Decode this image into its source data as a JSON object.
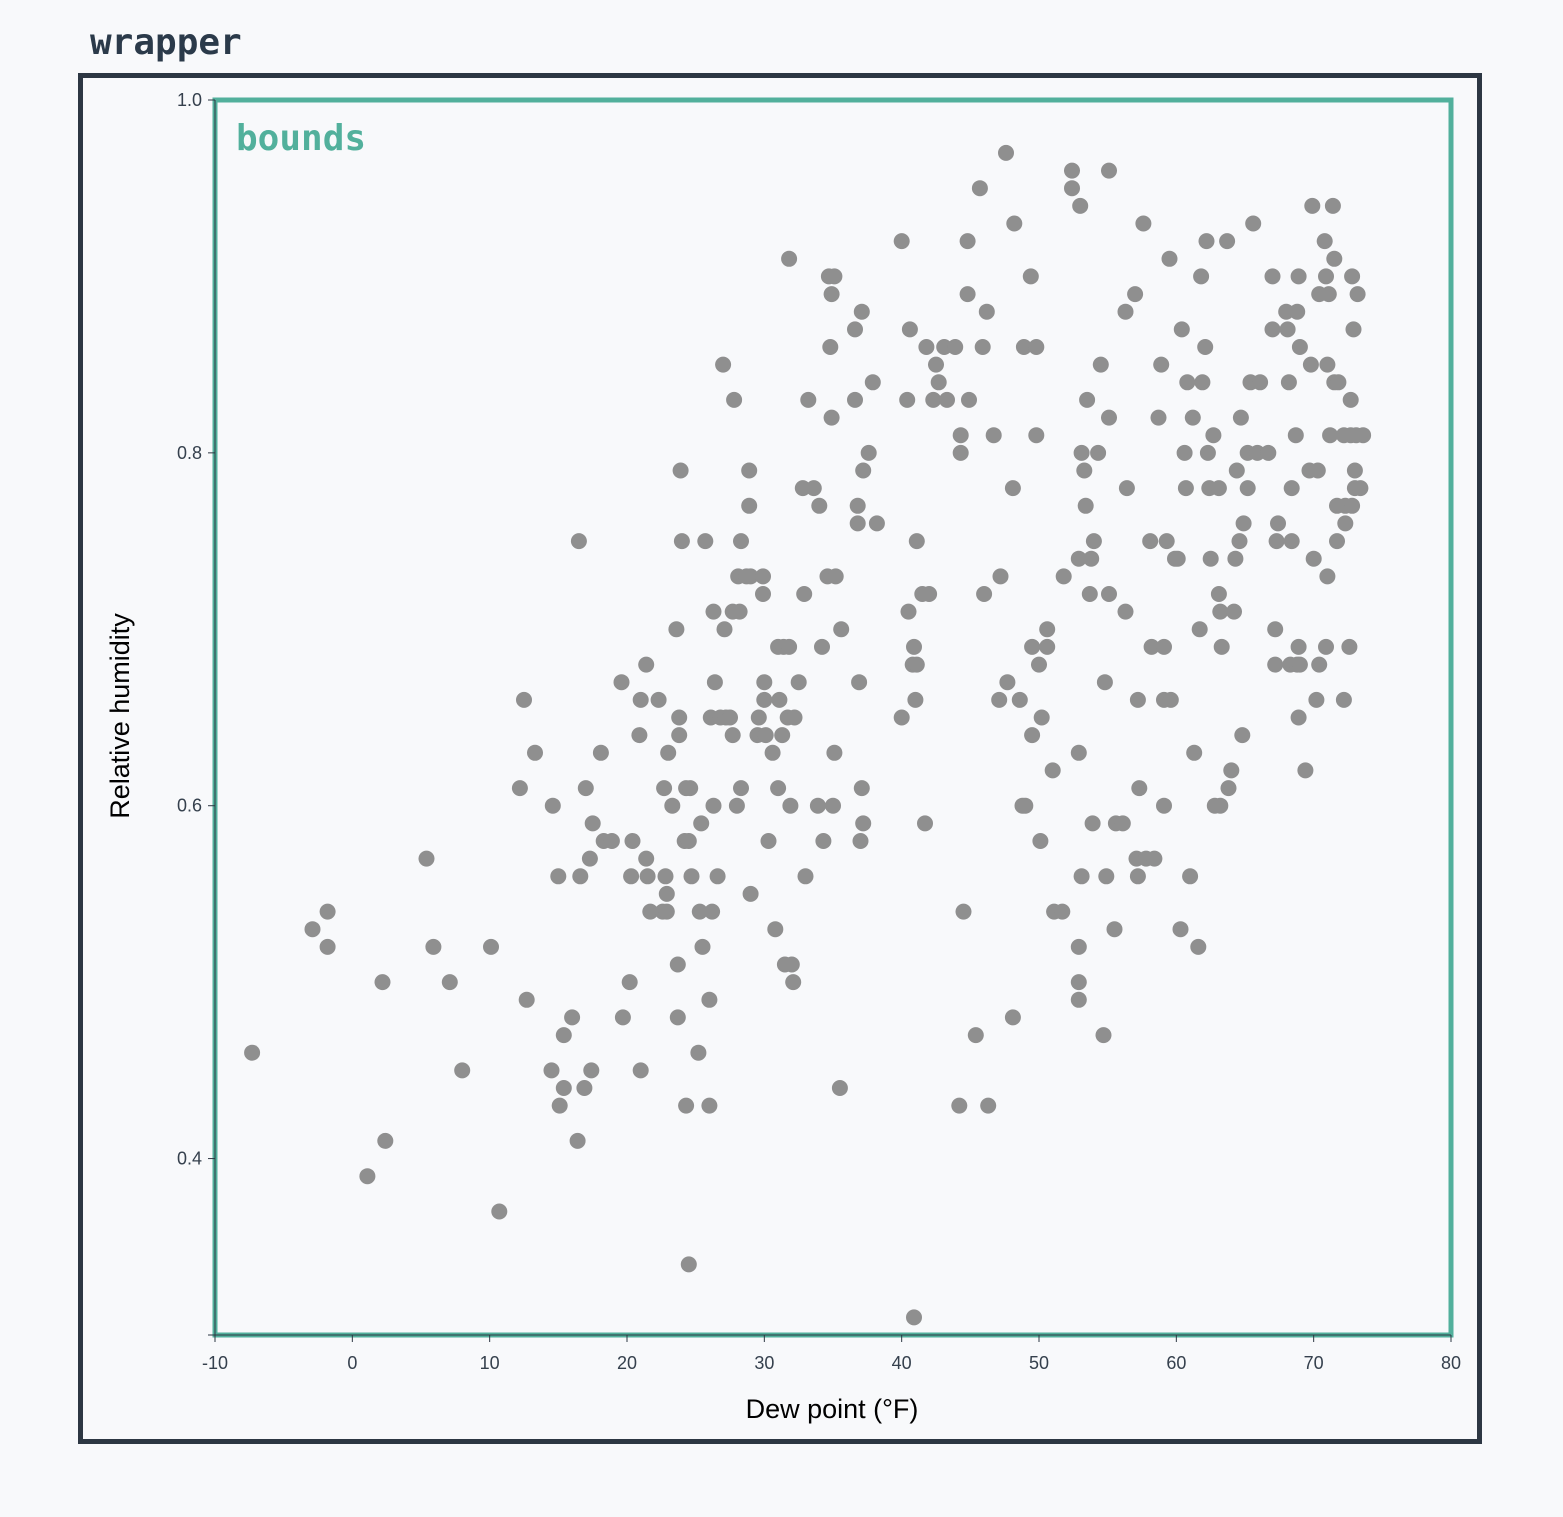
{
  "wrapper_label": "wrapper",
  "bounds_label": "bounds",
  "colors": {
    "wrapper_border": "#2d3743",
    "bounds_border": "#52b09c",
    "dot": "#8f8f8f",
    "background": "#f8f9fb"
  },
  "chart_data": {
    "type": "scatter",
    "xlabel": "Dew point (°F)",
    "ylabel": "Relative humidity",
    "xlim": [
      -10,
      80
    ],
    "ylim": [
      0.3,
      1.0
    ],
    "x_ticks": [
      -10,
      0,
      10,
      20,
      30,
      40,
      50,
      60,
      70,
      80
    ],
    "x_tick_labels": [
      "-10",
      "0",
      "10",
      "20",
      "30",
      "40",
      "50",
      "60",
      "70",
      "80"
    ],
    "y_ticks": [
      1.0,
      0.8,
      0.6,
      0.4,
      0.3
    ],
    "y_tick_labels": [
      "1.0",
      "0.8",
      "0.6",
      "0.4",
      ""
    ],
    "grid": false,
    "points": [
      [
        -7.3,
        0.46
      ],
      [
        -2.9,
        0.53
      ],
      [
        -1.8,
        0.54
      ],
      [
        -1.8,
        0.52
      ],
      [
        1.1,
        0.39
      ],
      [
        2.2,
        0.5
      ],
      [
        2.4,
        0.41
      ],
      [
        5.4,
        0.57
      ],
      [
        5.9,
        0.52
      ],
      [
        7.1,
        0.5
      ],
      [
        8.0,
        0.45
      ],
      [
        10.1,
        0.52
      ],
      [
        10.7,
        0.37
      ],
      [
        12.2,
        0.61
      ],
      [
        12.5,
        0.66
      ],
      [
        12.7,
        0.49
      ],
      [
        13.3,
        0.63
      ],
      [
        14.5,
        0.45
      ],
      [
        14.6,
        0.6
      ],
      [
        15.0,
        0.56
      ],
      [
        15.1,
        0.43
      ],
      [
        15.4,
        0.44
      ],
      [
        15.4,
        0.47
      ],
      [
        16.0,
        0.48
      ],
      [
        16.4,
        0.41
      ],
      [
        16.5,
        0.75
      ],
      [
        16.6,
        0.56
      ],
      [
        16.9,
        0.44
      ],
      [
        17.0,
        0.61
      ],
      [
        17.3,
        0.57
      ],
      [
        17.4,
        0.45
      ],
      [
        17.5,
        0.59
      ],
      [
        18.1,
        0.63
      ],
      [
        18.3,
        0.58
      ],
      [
        18.9,
        0.58
      ],
      [
        19.6,
        0.67
      ],
      [
        19.7,
        0.48
      ],
      [
        20.2,
        0.5
      ],
      [
        20.3,
        0.56
      ],
      [
        20.4,
        0.58
      ],
      [
        20.9,
        0.64
      ],
      [
        21.0,
        0.45
      ],
      [
        21.0,
        0.66
      ],
      [
        21.4,
        0.68
      ],
      [
        21.4,
        0.57
      ],
      [
        21.5,
        0.56
      ],
      [
        21.7,
        0.54
      ],
      [
        22.3,
        0.66
      ],
      [
        22.6,
        0.54
      ],
      [
        22.7,
        0.61
      ],
      [
        22.8,
        0.56
      ],
      [
        22.9,
        0.55
      ],
      [
        22.9,
        0.54
      ],
      [
        23.0,
        0.63
      ],
      [
        23.3,
        0.6
      ],
      [
        23.6,
        0.7
      ],
      [
        23.7,
        0.51
      ],
      [
        23.7,
        0.48
      ],
      [
        23.8,
        0.65
      ],
      [
        23.8,
        0.64
      ],
      [
        23.9,
        0.79
      ],
      [
        24.0,
        0.75
      ],
      [
        24.2,
        0.58
      ],
      [
        24.3,
        0.61
      ],
      [
        24.3,
        0.43
      ],
      [
        24.5,
        0.58
      ],
      [
        24.5,
        0.34
      ],
      [
        24.6,
        0.61
      ],
      [
        24.7,
        0.56
      ],
      [
        25.2,
        0.46
      ],
      [
        25.3,
        0.54
      ],
      [
        25.4,
        0.59
      ],
      [
        25.5,
        0.52
      ],
      [
        25.7,
        0.75
      ],
      [
        26.0,
        0.49
      ],
      [
        26.0,
        0.43
      ],
      [
        26.1,
        0.65
      ],
      [
        26.2,
        0.54
      ],
      [
        26.3,
        0.71
      ],
      [
        26.3,
        0.6
      ],
      [
        26.4,
        0.67
      ],
      [
        26.6,
        0.56
      ],
      [
        26.8,
        0.65
      ],
      [
        27.0,
        0.85
      ],
      [
        27.1,
        0.7
      ],
      [
        27.2,
        0.65
      ],
      [
        27.5,
        0.65
      ],
      [
        27.7,
        0.64
      ],
      [
        27.7,
        0.71
      ],
      [
        27.8,
        0.83
      ],
      [
        28.0,
        0.6
      ],
      [
        28.1,
        0.73
      ],
      [
        28.2,
        0.71
      ],
      [
        28.3,
        0.75
      ],
      [
        28.3,
        0.61
      ],
      [
        28.7,
        0.73
      ],
      [
        28.9,
        0.77
      ],
      [
        28.9,
        0.79
      ],
      [
        29.0,
        0.55
      ],
      [
        29.0,
        0.73
      ],
      [
        29.5,
        0.64
      ],
      [
        29.6,
        0.65
      ],
      [
        29.9,
        0.73
      ],
      [
        29.9,
        0.72
      ],
      [
        30.0,
        0.67
      ],
      [
        30.0,
        0.66
      ],
      [
        30.1,
        0.64
      ],
      [
        30.3,
        0.58
      ],
      [
        30.6,
        0.63
      ],
      [
        30.8,
        0.53
      ],
      [
        31.0,
        0.69
      ],
      [
        31.0,
        0.61
      ],
      [
        31.1,
        0.66
      ],
      [
        31.3,
        0.64
      ],
      [
        31.4,
        0.69
      ],
      [
        31.5,
        0.51
      ],
      [
        31.7,
        0.65
      ],
      [
        31.8,
        0.91
      ],
      [
        31.8,
        0.69
      ],
      [
        31.9,
        0.6
      ],
      [
        32.0,
        0.51
      ],
      [
        32.1,
        0.5
      ],
      [
        32.2,
        0.65
      ],
      [
        32.5,
        0.67
      ],
      [
        32.8,
        0.78
      ],
      [
        32.9,
        0.72
      ],
      [
        33.0,
        0.56
      ],
      [
        33.2,
        0.83
      ],
      [
        33.6,
        0.78
      ],
      [
        33.9,
        0.6
      ],
      [
        34.0,
        0.77
      ],
      [
        34.2,
        0.69
      ],
      [
        34.3,
        0.58
      ],
      [
        34.6,
        0.73
      ],
      [
        34.7,
        0.9
      ],
      [
        34.8,
        0.86
      ],
      [
        34.9,
        0.89
      ],
      [
        34.9,
        0.82
      ],
      [
        35.0,
        0.6
      ],
      [
        35.1,
        0.63
      ],
      [
        35.1,
        0.9
      ],
      [
        35.2,
        0.73
      ],
      [
        35.5,
        0.44
      ],
      [
        35.6,
        0.7
      ],
      [
        36.6,
        0.87
      ],
      [
        36.6,
        0.83
      ],
      [
        36.8,
        0.77
      ],
      [
        36.8,
        0.76
      ],
      [
        36.9,
        0.67
      ],
      [
        37.0,
        0.58
      ],
      [
        37.1,
        0.61
      ],
      [
        37.1,
        0.88
      ],
      [
        37.2,
        0.79
      ],
      [
        37.2,
        0.59
      ],
      [
        37.6,
        0.8
      ],
      [
        37.9,
        0.84
      ],
      [
        38.2,
        0.76
      ],
      [
        40.0,
        0.92
      ],
      [
        40.0,
        0.65
      ],
      [
        40.4,
        0.83
      ],
      [
        40.5,
        0.71
      ],
      [
        40.6,
        0.87
      ],
      [
        40.8,
        0.68
      ],
      [
        40.9,
        0.31
      ],
      [
        40.9,
        0.69
      ],
      [
        41.0,
        0.66
      ],
      [
        41.1,
        0.68
      ],
      [
        41.1,
        0.75
      ],
      [
        41.5,
        0.72
      ],
      [
        41.7,
        0.59
      ],
      [
        41.8,
        0.86
      ],
      [
        42.0,
        0.72
      ],
      [
        42.3,
        0.83
      ],
      [
        42.5,
        0.85
      ],
      [
        42.7,
        0.84
      ],
      [
        43.1,
        0.86
      ],
      [
        43.3,
        0.83
      ],
      [
        43.9,
        0.86
      ],
      [
        44.2,
        0.43
      ],
      [
        44.3,
        0.8
      ],
      [
        44.3,
        0.81
      ],
      [
        44.5,
        0.54
      ],
      [
        44.8,
        0.92
      ],
      [
        44.8,
        0.89
      ],
      [
        44.9,
        0.83
      ],
      [
        45.4,
        0.47
      ],
      [
        45.7,
        0.95
      ],
      [
        45.9,
        0.86
      ],
      [
        46.0,
        0.72
      ],
      [
        46.2,
        0.88
      ],
      [
        46.3,
        0.43
      ],
      [
        46.7,
        0.81
      ],
      [
        47.1,
        0.66
      ],
      [
        47.2,
        0.73
      ],
      [
        47.6,
        0.97
      ],
      [
        47.7,
        0.67
      ],
      [
        48.1,
        0.48
      ],
      [
        48.1,
        0.78
      ],
      [
        48.2,
        0.93
      ],
      [
        48.6,
        0.66
      ],
      [
        48.8,
        0.6
      ],
      [
        48.9,
        0.86
      ],
      [
        49.0,
        0.6
      ],
      [
        49.4,
        0.9
      ],
      [
        49.5,
        0.69
      ],
      [
        49.5,
        0.64
      ],
      [
        49.8,
        0.86
      ],
      [
        49.8,
        0.81
      ],
      [
        50.0,
        0.68
      ],
      [
        50.1,
        0.58
      ],
      [
        50.2,
        0.65
      ],
      [
        50.6,
        0.69
      ],
      [
        50.6,
        0.7
      ],
      [
        51.0,
        0.62
      ],
      [
        51.1,
        0.54
      ],
      [
        51.7,
        0.54
      ],
      [
        51.8,
        0.73
      ],
      [
        52.4,
        0.96
      ],
      [
        52.4,
        0.95
      ],
      [
        52.9,
        0.74
      ],
      [
        52.9,
        0.52
      ],
      [
        52.9,
        0.49
      ],
      [
        52.9,
        0.5
      ],
      [
        52.9,
        0.63
      ],
      [
        53.0,
        0.94
      ],
      [
        53.1,
        0.8
      ],
      [
        53.1,
        0.56
      ],
      [
        53.3,
        0.79
      ],
      [
        53.4,
        0.77
      ],
      [
        53.5,
        0.83
      ],
      [
        53.7,
        0.72
      ],
      [
        53.8,
        0.74
      ],
      [
        53.9,
        0.59
      ],
      [
        54.0,
        0.75
      ],
      [
        54.3,
        0.8
      ],
      [
        54.5,
        0.85
      ],
      [
        54.7,
        0.47
      ],
      [
        54.8,
        0.67
      ],
      [
        54.9,
        0.56
      ],
      [
        55.1,
        0.82
      ],
      [
        55.1,
        0.96
      ],
      [
        55.1,
        0.72
      ],
      [
        55.5,
        0.53
      ],
      [
        55.6,
        0.59
      ],
      [
        56.1,
        0.59
      ],
      [
        56.3,
        0.71
      ],
      [
        56.3,
        0.88
      ],
      [
        56.4,
        0.78
      ],
      [
        57.0,
        0.89
      ],
      [
        57.1,
        0.57
      ],
      [
        57.2,
        0.56
      ],
      [
        57.2,
        0.66
      ],
      [
        57.3,
        0.61
      ],
      [
        57.6,
        0.93
      ],
      [
        57.8,
        0.57
      ],
      [
        58.1,
        0.75
      ],
      [
        58.2,
        0.69
      ],
      [
        58.4,
        0.57
      ],
      [
        58.7,
        0.82
      ],
      [
        58.9,
        0.85
      ],
      [
        59.1,
        0.6
      ],
      [
        59.1,
        0.66
      ],
      [
        59.1,
        0.69
      ],
      [
        59.3,
        0.75
      ],
      [
        59.5,
        0.91
      ],
      [
        59.6,
        0.66
      ],
      [
        59.9,
        0.74
      ],
      [
        60.1,
        0.74
      ],
      [
        60.3,
        0.53
      ],
      [
        60.4,
        0.87
      ],
      [
        60.6,
        0.8
      ],
      [
        60.7,
        0.78
      ],
      [
        60.8,
        0.84
      ],
      [
        61.0,
        0.56
      ],
      [
        61.2,
        0.82
      ],
      [
        61.3,
        0.63
      ],
      [
        61.6,
        0.52
      ],
      [
        61.7,
        0.7
      ],
      [
        61.8,
        0.9
      ],
      [
        61.9,
        0.84
      ],
      [
        62.1,
        0.86
      ],
      [
        62.2,
        0.92
      ],
      [
        62.3,
        0.8
      ],
      [
        62.4,
        0.78
      ],
      [
        62.5,
        0.74
      ],
      [
        62.7,
        0.81
      ],
      [
        62.8,
        0.6
      ],
      [
        63.1,
        0.72
      ],
      [
        63.1,
        0.78
      ],
      [
        63.2,
        0.71
      ],
      [
        63.2,
        0.6
      ],
      [
        63.3,
        0.69
      ],
      [
        63.7,
        0.92
      ],
      [
        63.8,
        0.61
      ],
      [
        64.0,
        0.62
      ],
      [
        64.2,
        0.71
      ],
      [
        64.3,
        0.74
      ],
      [
        64.4,
        0.79
      ],
      [
        64.6,
        0.75
      ],
      [
        64.7,
        0.82
      ],
      [
        64.8,
        0.64
      ],
      [
        64.9,
        0.76
      ],
      [
        65.2,
        0.8
      ],
      [
        65.2,
        0.78
      ],
      [
        65.4,
        0.84
      ],
      [
        65.6,
        0.93
      ],
      [
        65.9,
        0.8
      ],
      [
        66.1,
        0.84
      ],
      [
        66.7,
        0.8
      ],
      [
        67.0,
        0.9
      ],
      [
        67.0,
        0.87
      ],
      [
        67.2,
        0.7
      ],
      [
        67.2,
        0.68
      ],
      [
        67.3,
        0.75
      ],
      [
        67.4,
        0.76
      ],
      [
        68.0,
        0.88
      ],
      [
        68.1,
        0.87
      ],
      [
        68.2,
        0.84
      ],
      [
        68.3,
        0.68
      ],
      [
        68.4,
        0.78
      ],
      [
        68.4,
        0.75
      ],
      [
        68.7,
        0.81
      ],
      [
        68.8,
        0.68
      ],
      [
        68.8,
        0.88
      ],
      [
        68.9,
        0.65
      ],
      [
        68.9,
        0.9
      ],
      [
        68.9,
        0.69
      ],
      [
        69.0,
        0.86
      ],
      [
        69.0,
        0.68
      ],
      [
        69.4,
        0.62
      ],
      [
        69.7,
        0.79
      ],
      [
        69.8,
        0.85
      ],
      [
        69.9,
        0.94
      ],
      [
        70.0,
        0.74
      ],
      [
        70.2,
        0.66
      ],
      [
        70.3,
        0.79
      ],
      [
        70.4,
        0.68
      ],
      [
        70.4,
        0.89
      ],
      [
        70.8,
        0.92
      ],
      [
        70.9,
        0.9
      ],
      [
        70.9,
        0.69
      ],
      [
        71.0,
        0.85
      ],
      [
        71.0,
        0.73
      ],
      [
        71.1,
        0.89
      ],
      [
        71.2,
        0.81
      ],
      [
        71.4,
        0.94
      ],
      [
        71.5,
        0.91
      ],
      [
        71.5,
        0.84
      ],
      [
        71.7,
        0.75
      ],
      [
        71.7,
        0.77
      ],
      [
        71.8,
        0.84
      ],
      [
        72.2,
        0.66
      ],
      [
        72.2,
        0.81
      ],
      [
        72.3,
        0.76
      ],
      [
        72.3,
        0.77
      ],
      [
        72.6,
        0.69
      ],
      [
        72.7,
        0.83
      ],
      [
        72.7,
        0.81
      ],
      [
        72.8,
        0.9
      ],
      [
        72.8,
        0.77
      ],
      [
        72.9,
        0.87
      ],
      [
        73.0,
        0.78
      ],
      [
        73.0,
        0.79
      ],
      [
        73.1,
        0.81
      ],
      [
        73.2,
        0.89
      ],
      [
        73.4,
        0.78
      ],
      [
        73.6,
        0.81
      ]
    ]
  }
}
